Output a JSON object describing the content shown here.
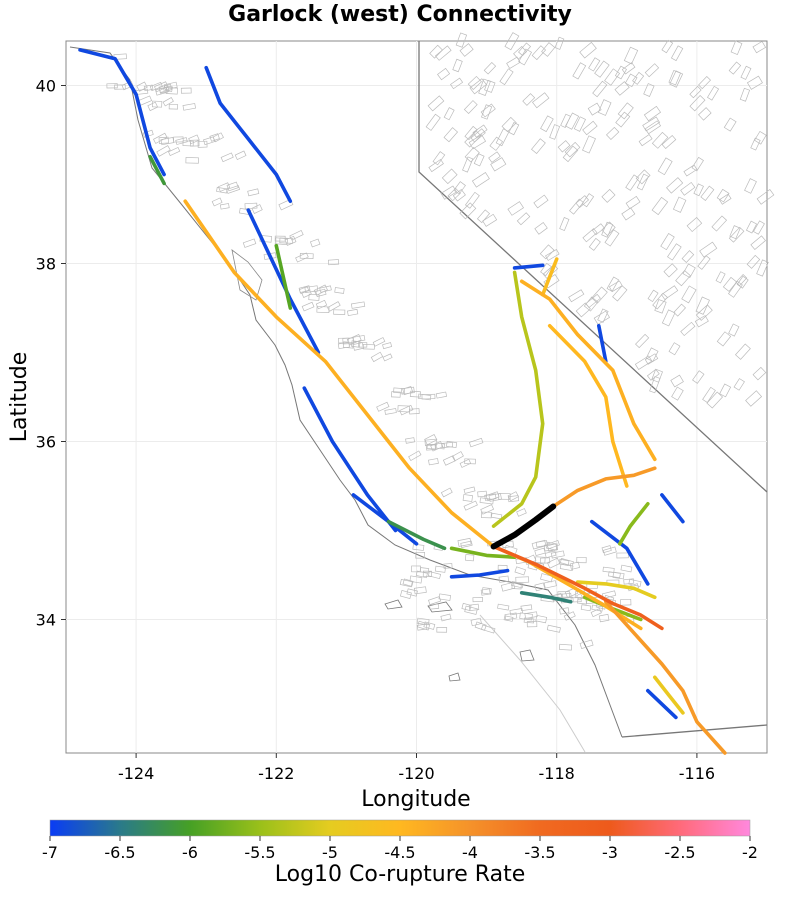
{
  "title": "Garlock (west) Connectivity",
  "chart_data": {
    "type": "map",
    "title": "Garlock (west) Connectivity",
    "xlabel": "Longitude",
    "ylabel": "Latitude",
    "xlim": [
      -125,
      -115
    ],
    "ylim": [
      32.5,
      40.5
    ],
    "x_ticks": [
      -124,
      -122,
      -120,
      -118,
      -116
    ],
    "y_ticks": [
      34,
      36,
      38,
      40
    ],
    "grid": true,
    "colorbar": {
      "label": "Log10 Co-rupture Rate",
      "min": -7,
      "max": -2,
      "ticks": [
        -7,
        -6.5,
        -6,
        -5.5,
        -5,
        -4.5,
        -4,
        -3.5,
        -3,
        -2.5,
        -2
      ],
      "colors": [
        "#0a3cf5",
        "#2a7a8a",
        "#46a025",
        "#9ac01a",
        "#e5cc20",
        "#ffb820",
        "#f5922a",
        "#f06a20",
        "#ee5a1c",
        "#ff6a7a",
        "#ff88dd"
      ]
    },
    "highlighted_fault": {
      "name": "Garlock (west)",
      "color": "#000000",
      "points": [
        [
          -118.9,
          34.82
        ],
        [
          -118.6,
          34.95
        ],
        [
          -118.3,
          35.12
        ],
        [
          -118.05,
          35.27
        ]
      ]
    },
    "fault_traces": [
      {
        "value": -4.4,
        "points": [
          [
            -123.3,
            38.7
          ],
          [
            -122.6,
            37.9
          ],
          [
            -122.0,
            37.4
          ],
          [
            -121.3,
            36.9
          ],
          [
            -120.7,
            36.3
          ],
          [
            -120.1,
            35.7
          ],
          [
            -119.5,
            35.2
          ],
          [
            -118.9,
            34.82
          ],
          [
            -118.4,
            34.65
          ],
          [
            -117.8,
            34.38
          ],
          [
            -117.3,
            34.15
          ],
          [
            -116.8,
            33.9
          ]
        ]
      },
      {
        "value": -3.2,
        "points": [
          [
            -118.9,
            34.82
          ],
          [
            -118.3,
            34.62
          ],
          [
            -117.6,
            34.35
          ],
          [
            -117.2,
            34.18
          ],
          [
            -116.8,
            34.05
          ],
          [
            -116.5,
            33.9
          ]
        ]
      },
      {
        "value": -4.1,
        "points": [
          [
            -118.05,
            35.27
          ],
          [
            -117.7,
            35.45
          ],
          [
            -117.3,
            35.58
          ],
          [
            -116.9,
            35.62
          ],
          [
            -116.6,
            35.7
          ]
        ]
      },
      {
        "value": -4.1,
        "points": [
          [
            -117.3,
            34.2
          ],
          [
            -116.9,
            33.85
          ],
          [
            -116.5,
            33.5
          ],
          [
            -116.2,
            33.2
          ],
          [
            -116.0,
            32.85
          ],
          [
            -115.6,
            32.5
          ]
        ]
      },
      {
        "value": -4.5,
        "points": [
          [
            -118.1,
            37.3
          ],
          [
            -117.6,
            36.9
          ],
          [
            -117.3,
            36.5
          ],
          [
            -117.2,
            36.0
          ],
          [
            -117.0,
            35.5
          ]
        ]
      },
      {
        "value": -4.4,
        "points": [
          [
            -118.5,
            37.8
          ],
          [
            -118.1,
            37.6
          ],
          [
            -117.7,
            37.2
          ],
          [
            -117.2,
            36.8
          ],
          [
            -116.9,
            36.2
          ],
          [
            -116.6,
            35.8
          ]
        ]
      },
      {
        "value": -5.3,
        "points": [
          [
            -118.6,
            37.9
          ],
          [
            -118.5,
            37.4
          ],
          [
            -118.3,
            36.8
          ],
          [
            -118.2,
            36.2
          ],
          [
            -118.3,
            35.6
          ],
          [
            -118.5,
            35.3
          ],
          [
            -118.9,
            35.05
          ]
        ]
      },
      {
        "value": -5.7,
        "points": [
          [
            -119.5,
            34.8
          ],
          [
            -119.0,
            34.72
          ],
          [
            -118.6,
            34.7
          ]
        ]
      },
      {
        "value": -5.0,
        "points": [
          [
            -117.7,
            34.42
          ],
          [
            -117.3,
            34.4
          ],
          [
            -116.9,
            34.35
          ],
          [
            -116.6,
            34.25
          ]
        ]
      },
      {
        "value": -5.6,
        "points": [
          [
            -117.6,
            34.25
          ],
          [
            -117.2,
            34.12
          ],
          [
            -116.8,
            34.0
          ]
        ]
      },
      {
        "value": -4.9,
        "points": [
          [
            -116.6,
            33.35
          ],
          [
            -116.4,
            33.15
          ],
          [
            -116.2,
            32.95
          ]
        ]
      },
      {
        "value": -4.6,
        "points": [
          [
            -118.2,
            37.65
          ],
          [
            -118.1,
            37.85
          ],
          [
            -118.0,
            38.05
          ]
        ]
      },
      {
        "value": -5.6,
        "points": [
          [
            -116.7,
            35.3
          ],
          [
            -116.95,
            35.05
          ],
          [
            -117.1,
            34.85
          ]
        ]
      },
      {
        "value": -6.4,
        "points": [
          [
            -118.5,
            34.3
          ],
          [
            -118.1,
            34.25
          ],
          [
            -117.8,
            34.2
          ]
        ]
      },
      {
        "value": -6.9,
        "points": [
          [
            -124.8,
            40.4
          ],
          [
            -124.3,
            40.3
          ],
          [
            -124.0,
            39.9
          ],
          [
            -123.8,
            39.3
          ],
          [
            -123.6,
            39.0
          ]
        ]
      },
      {
        "value": -6.9,
        "points": [
          [
            -123.0,
            40.2
          ],
          [
            -122.8,
            39.8
          ],
          [
            -122.4,
            39.4
          ],
          [
            -122.0,
            39.0
          ],
          [
            -121.8,
            38.7
          ]
        ]
      },
      {
        "value": -6.9,
        "points": [
          [
            -122.4,
            38.6
          ],
          [
            -122.1,
            38.1
          ],
          [
            -121.8,
            37.6
          ],
          [
            -121.4,
            37.0
          ]
        ]
      },
      {
        "value": -6.9,
        "points": [
          [
            -121.6,
            36.6
          ],
          [
            -121.2,
            36.0
          ],
          [
            -120.7,
            35.4
          ],
          [
            -120.3,
            35.0
          ]
        ]
      },
      {
        "value": -6.9,
        "points": [
          [
            -120.9,
            35.4
          ],
          [
            -120.4,
            35.1
          ],
          [
            -120.0,
            34.85
          ]
        ]
      },
      {
        "value": -6.9,
        "points": [
          [
            -117.5,
            35.1
          ],
          [
            -117.0,
            34.8
          ],
          [
            -116.7,
            34.4
          ]
        ]
      },
      {
        "value": -6.9,
        "points": [
          [
            -116.5,
            35.4
          ],
          [
            -116.2,
            35.1
          ]
        ]
      },
      {
        "value": -6.9,
        "points": [
          [
            -116.7,
            33.2
          ],
          [
            -116.3,
            32.9
          ]
        ]
      },
      {
        "value": -6.9,
        "points": [
          [
            -119.5,
            34.48
          ],
          [
            -119.1,
            34.5
          ],
          [
            -118.7,
            34.55
          ]
        ]
      },
      {
        "value": -6.9,
        "points": [
          [
            -118.6,
            37.95
          ],
          [
            -118.2,
            37.98
          ]
        ]
      },
      {
        "value": -6.9,
        "points": [
          [
            -117.4,
            37.3
          ],
          [
            -117.3,
            36.9
          ]
        ]
      },
      {
        "value": -6.2,
        "points": [
          [
            -120.4,
            35.1
          ],
          [
            -119.9,
            34.9
          ],
          [
            -119.6,
            34.8
          ]
        ]
      },
      {
        "value": -6.1,
        "points": [
          [
            -123.8,
            39.2
          ],
          [
            -123.6,
            38.9
          ]
        ]
      },
      {
        "value": -5.9,
        "points": [
          [
            -122.0,
            38.2
          ],
          [
            -121.8,
            37.5
          ]
        ]
      }
    ]
  }
}
